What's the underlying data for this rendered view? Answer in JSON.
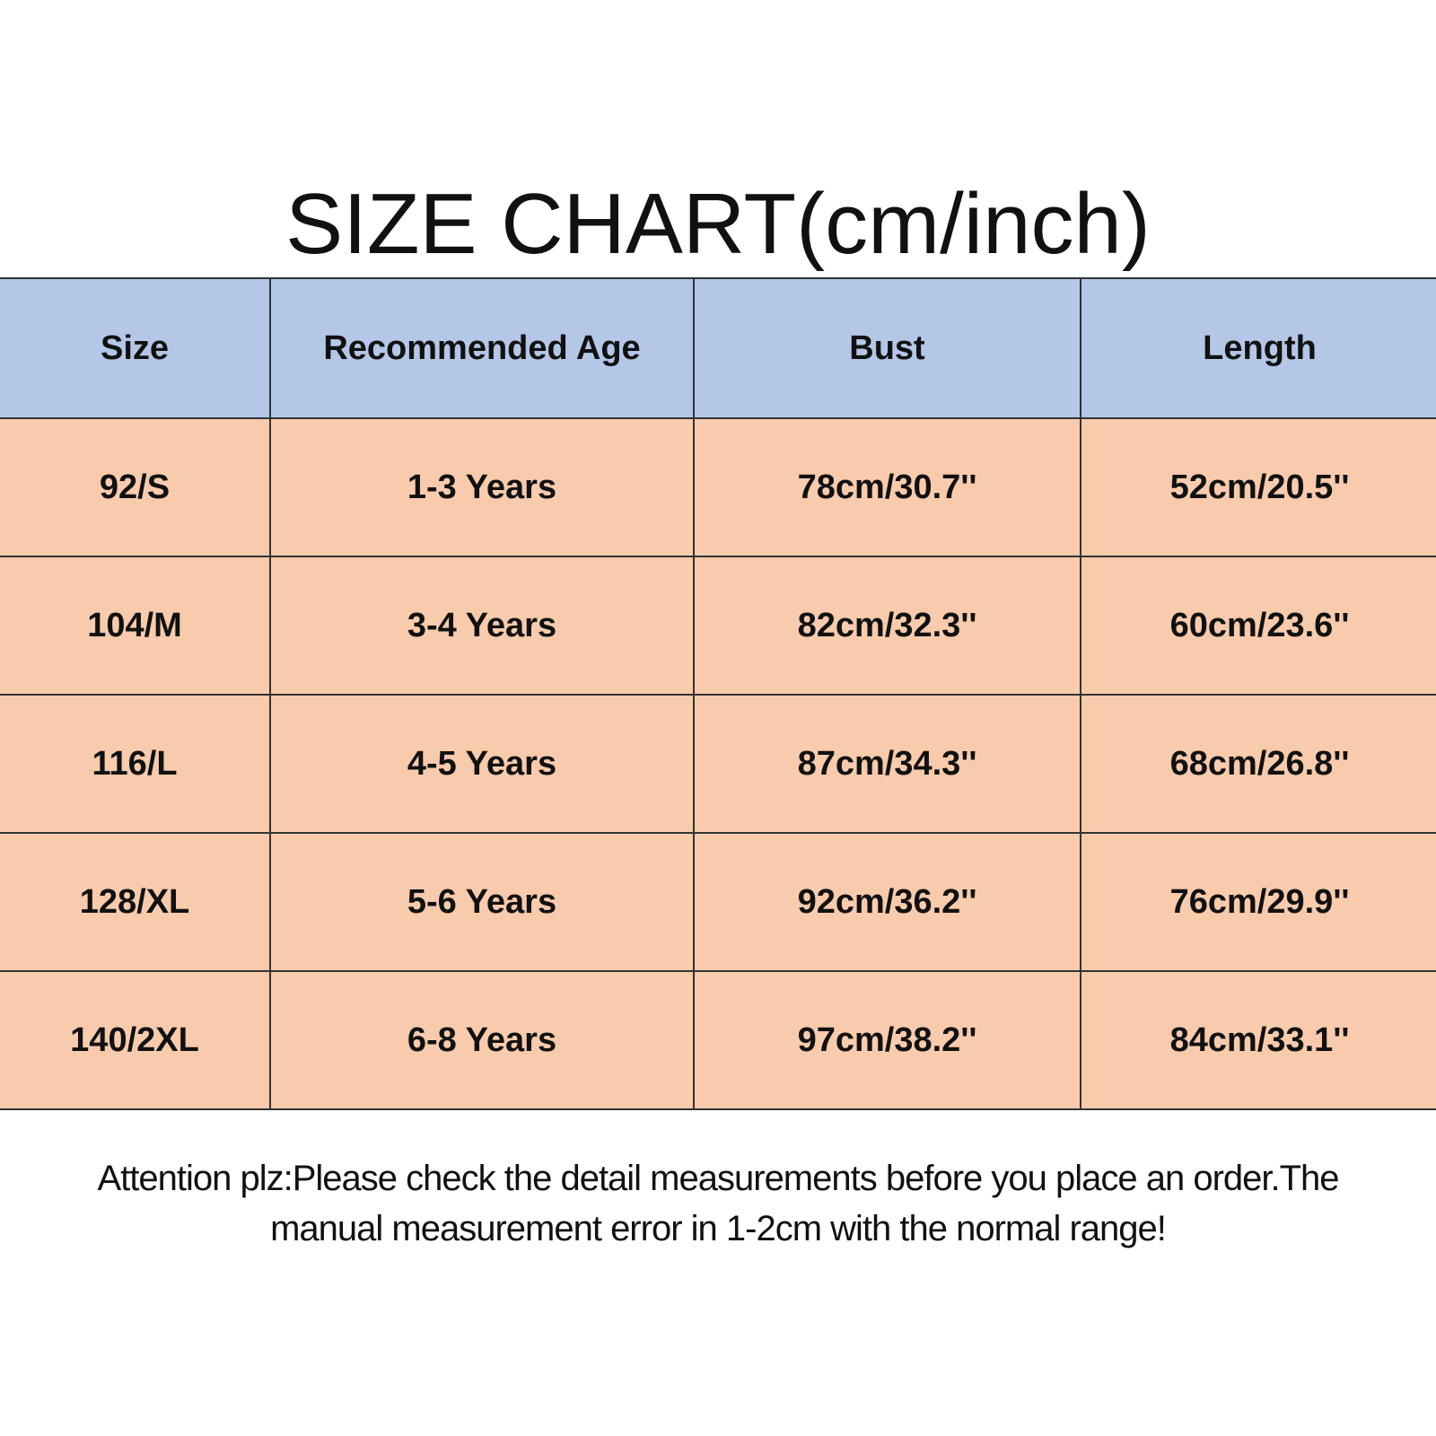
{
  "title": "SIZE CHART(cm/inch)",
  "table": {
    "header": [
      "Size",
      "Recommended Age",
      "Bust",
      "Length"
    ],
    "rows": [
      [
        "92/S",
        "1-3 Years",
        "78cm/30.7''",
        "52cm/20.5''"
      ],
      [
        "104/M",
        "3-4 Years",
        "82cm/32.3''",
        "60cm/23.6''"
      ],
      [
        "116/L",
        "4-5 Years",
        "87cm/34.3''",
        "68cm/26.8''"
      ],
      [
        "128/XL",
        "5-6 Years",
        "92cm/36.2''",
        "76cm/29.9''"
      ],
      [
        "140/2XL",
        "6-8 Years",
        "97cm/38.2''",
        "84cm/33.1''"
      ]
    ]
  },
  "note": [
    "Attention plz:Please check the detail measurements before you place an order.The",
    "manual measurement error in 1-2cm with the normal range!"
  ]
}
